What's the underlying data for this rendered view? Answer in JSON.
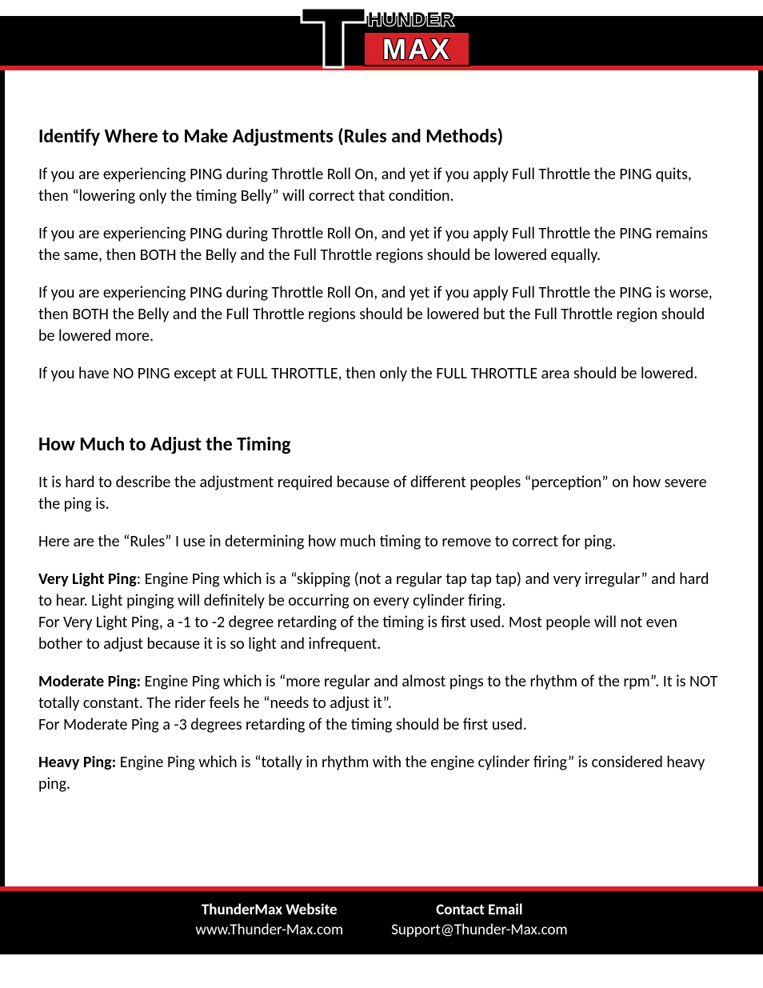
{
  "logo": {
    "top_text": "HUNDER",
    "bottom_text": "MAX",
    "colors": {
      "bar_bg": "#000000",
      "red": "#d7222a",
      "white": "#ffffff",
      "black": "#000000"
    }
  },
  "section1": {
    "heading": "Identify Where to Make Adjustments (Rules and Methods)",
    "paragraphs": [
      "If you are experiencing PING during Throttle Roll On, and yet if you apply Full Throttle the PING quits, then “lowering only the timing Belly” will correct that condition.",
      "If you are experiencing PING during Throttle Roll On, and yet if you apply Full Throttle the PING remains the same, then BOTH the Belly and the Full Throttle regions should be lowered equally.",
      "If you are experiencing PING during Throttle Roll On, and yet if you apply Full Throttle the PING is worse, then BOTH the Belly and the Full Throttle regions should be lowered but the Full Throttle region should be lowered more.",
      "If you have NO PING except at FULL THROTTLE, then only the FULL THROTTLE area should be lowered."
    ]
  },
  "section2": {
    "heading": "How Much to Adjust the Timing",
    "intro": [
      "It is hard to describe the adjustment required because of different peoples “perception” on how severe the ping is.",
      "Here are the “Rules” I use in determining how much timing to remove to correct for ping."
    ],
    "defs": [
      {
        "label": "Very Light Ping",
        "sep": ":  ",
        "body": "Engine Ping which is a “skipping (not a regular tap tap tap) and very irregular” and hard to hear.  Light pinging will definitely be occurring on every cylinder firing.\nFor Very Light Ping, a -1 to -2 degree retarding of the timing is first used.  Most people will not even bother to adjust because it is so light and infrequent."
      },
      {
        "label": "Moderate Ping:",
        "sep": "  ",
        "body": "Engine Ping which is “more regular and almost pings to the rhythm of the rpm”.  It is NOT totally constant.  The rider feels he “needs to adjust it”.\nFor Moderate Ping a -3 degrees retarding of the timing should be first used."
      },
      {
        "label": "Heavy Ping:",
        "sep": " ",
        "body": "Engine Ping which is “totally in rhythm with the engine cylinder firing” is considered heavy ping."
      }
    ]
  },
  "footer": {
    "left_title": "ThunderMax Website",
    "left_value": "www.Thunder-Max.com",
    "right_title": "Contact Email",
    "right_value": "Support@Thunder-Max.com"
  }
}
